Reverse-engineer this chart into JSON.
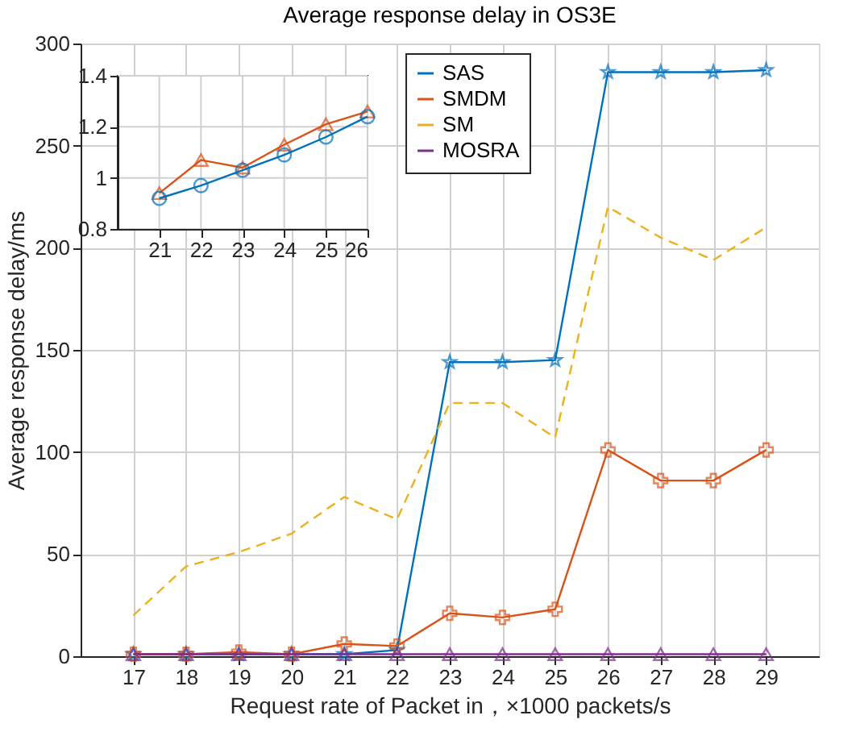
{
  "chart_data": [
    {
      "type": "line",
      "title": "Average response delay in OS3E",
      "xlabel": "Request rate of Packet in，×1000 packets/s",
      "ylabel": "Average response delay/ms",
      "x": [
        17,
        18,
        19,
        20,
        21,
        22,
        23,
        24,
        25,
        26,
        27,
        28,
        29
      ],
      "series": [
        {
          "name": "SAS",
          "color": "#0072bd",
          "marker": "star",
          "line_style": "solid",
          "values": [
            1,
            1,
            1,
            1,
            1,
            3,
            144,
            144,
            145,
            286,
            286,
            286,
            287
          ]
        },
        {
          "name": "SMDM",
          "color": "#d95319",
          "marker": "cross",
          "line_style": "solid",
          "values": [
            1,
            1,
            2,
            1,
            6,
            5,
            21,
            19,
            23,
            101,
            86,
            86,
            101
          ]
        },
        {
          "name": "SM",
          "color": "#edb120",
          "marker": "none",
          "line_style": "dashed",
          "values": [
            20,
            44,
            51,
            60,
            78,
            67,
            124,
            124,
            107,
            220,
            205,
            194,
            210
          ]
        },
        {
          "name": "MOSRA",
          "color": "#7e2f8e",
          "marker": "triangle",
          "line_style": "solid",
          "values": [
            1,
            1,
            1,
            1,
            1,
            1,
            1,
            1,
            1,
            1,
            1,
            1,
            1
          ]
        }
      ],
      "xlim": [
        16,
        30
      ],
      "xticks": [
        17,
        18,
        19,
        20,
        21,
        22,
        23,
        24,
        25,
        26,
        27,
        28,
        29
      ],
      "ylim": [
        0,
        300
      ],
      "yticks": [
        0,
        50,
        100,
        150,
        200,
        250,
        300
      ],
      "grid": true,
      "legend": "top"
    },
    {
      "type": "line",
      "x": [
        21,
        22,
        23,
        24,
        25,
        26
      ],
      "series": [
        {
          "color": "#d95319",
          "marker": "triangle",
          "line_style": "solid",
          "values": [
            0.94,
            1.07,
            1.04,
            1.13,
            1.21,
            1.26
          ]
        },
        {
          "color": "#0072bd",
          "marker": "circle",
          "line_style": "solid",
          "values": [
            0.92,
            0.97,
            1.03,
            1.09,
            1.16,
            1.24
          ]
        }
      ],
      "xlim": [
        20,
        26
      ],
      "xticks": [
        21,
        22,
        23,
        24,
        25,
        26
      ],
      "ylim": [
        0.8,
        1.4
      ],
      "yticks": [
        {
          "value": 0.8,
          "label": "0.8"
        },
        1,
        1.2,
        1.4
      ],
      "grid": true
    }
  ]
}
